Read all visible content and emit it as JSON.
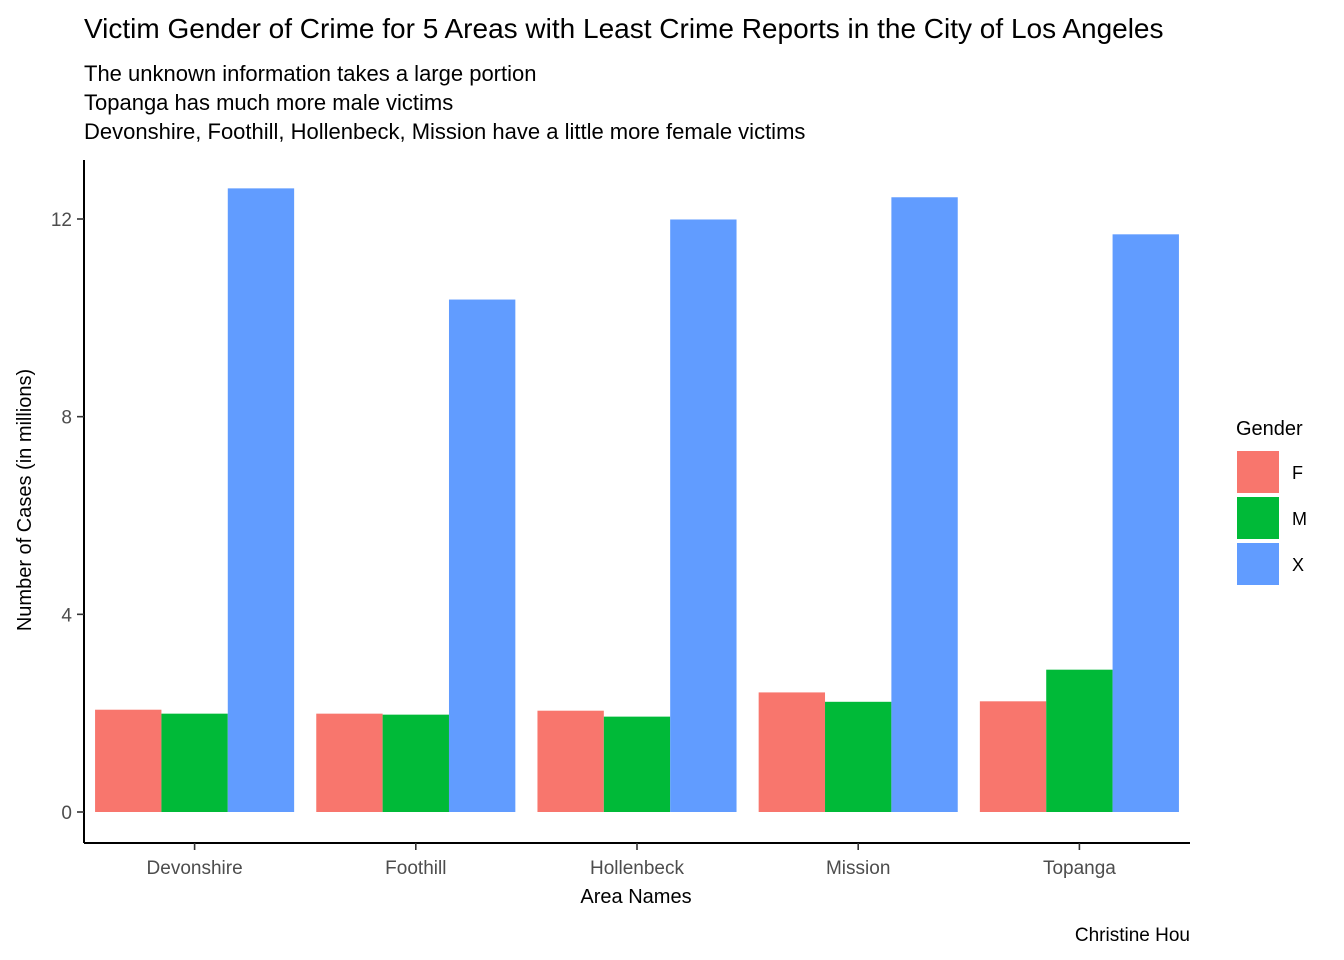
{
  "chart_data": {
    "type": "bar",
    "title": "Victim Gender of Crime for 5 Areas with Least Crime Reports in the City of Los Angeles",
    "subtitle": [
      "The unknown information takes a large portion",
      "Topanga has much more male victims",
      "Devonshire, Foothill, Hollenbeck, Mission have a little more female victims"
    ],
    "xlabel": "Area Names",
    "ylabel": "Number of Cases (in millions)",
    "caption": "Christine Hou",
    "categories": [
      "Devonshire",
      "Foothill",
      "Hollenbeck",
      "Mission",
      "Topanga"
    ],
    "ylim": [
      0,
      13
    ],
    "yticks": [
      0,
      4,
      8,
      12
    ],
    "grid": false,
    "legend": {
      "title": "Gender",
      "position": "right"
    },
    "series": [
      {
        "name": "F",
        "color": "#F8766D",
        "values": [
          2.07,
          1.99,
          2.05,
          2.42,
          2.24
        ]
      },
      {
        "name": "M",
        "color": "#00BA38",
        "values": [
          1.99,
          1.97,
          1.93,
          2.23,
          2.88
        ]
      },
      {
        "name": "X",
        "color": "#619CFF",
        "values": [
          12.62,
          10.37,
          11.99,
          12.44,
          11.69
        ]
      }
    ]
  }
}
